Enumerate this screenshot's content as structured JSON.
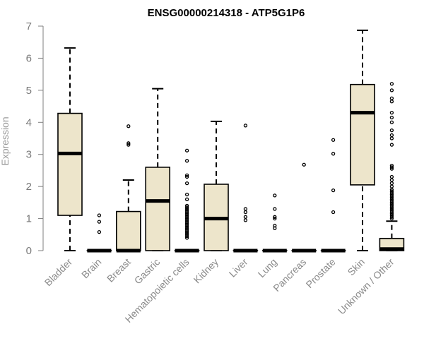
{
  "chart_data": {
    "type": "boxplot",
    "title": "ENSG00000214318 - ATP5G1P6",
    "ylabel": "Expression",
    "xlabel": "",
    "ylim": [
      0,
      7
    ],
    "yticks": [
      0,
      1,
      2,
      3,
      4,
      5,
      6,
      7
    ],
    "grid": false,
    "colors": {
      "box_fill": "#ede5cb",
      "stroke": "#000000",
      "axis": "#7f7f7f"
    },
    "categories": [
      "Bladder",
      "Brain",
      "Breast",
      "Gastric",
      "Hematopoietic cells",
      "Kidney",
      "Liver",
      "Lung",
      "Pancreas",
      "Prostate",
      "Skin",
      "Unknown / Other"
    ],
    "boxes": [
      {
        "whisker_low": 0,
        "q1": 1.1,
        "median": 3.03,
        "q3": 4.28,
        "whisker_high": 6.32,
        "outliers": []
      },
      {
        "whisker_low": 0,
        "q1": 0,
        "median": 0,
        "q3": 0,
        "whisker_high": 0,
        "outliers": [
          0.58,
          0.9,
          1.1
        ]
      },
      {
        "whisker_low": 0,
        "q1": 0,
        "median": 0,
        "q3": 1.22,
        "whisker_high": 2.2,
        "outliers": [
          3.3,
          3.35,
          3.88
        ]
      },
      {
        "whisker_low": 0,
        "q1": 0,
        "median": 1.55,
        "q3": 2.6,
        "whisker_high": 5.05,
        "outliers": []
      },
      {
        "whisker_low": 0,
        "q1": 0,
        "median": 0,
        "q3": 0,
        "whisker_high": 0,
        "outliers": [
          0.4,
          0.45,
          0.5,
          0.55,
          0.6,
          0.65,
          0.7,
          0.75,
          0.8,
          0.85,
          0.9,
          0.95,
          1.0,
          1.05,
          1.1,
          1.15,
          1.2,
          1.25,
          1.3,
          1.35,
          1.4,
          1.6,
          1.75,
          2.1,
          2.3,
          2.35,
          2.8,
          3.12
        ]
      },
      {
        "whisker_low": 0,
        "q1": 0,
        "median": 1.0,
        "q3": 2.07,
        "whisker_high": 4.03,
        "outliers": []
      },
      {
        "whisker_low": 0,
        "q1": 0,
        "median": 0,
        "q3": 0,
        "whisker_high": 0,
        "outliers": [
          0.95,
          1.05,
          1.2,
          1.3,
          3.9
        ]
      },
      {
        "whisker_low": 0,
        "q1": 0,
        "median": 0,
        "q3": 0,
        "whisker_high": 0,
        "outliers": [
          0.7,
          0.78,
          1.0,
          1.05,
          1.3,
          1.72
        ]
      },
      {
        "whisker_low": 0,
        "q1": 0,
        "median": 0,
        "q3": 0,
        "whisker_high": 0,
        "outliers": [
          2.68
        ]
      },
      {
        "whisker_low": 0,
        "q1": 0,
        "median": 0,
        "q3": 0,
        "whisker_high": 0,
        "outliers": [
          1.2,
          1.88,
          3.02,
          3.45
        ]
      },
      {
        "whisker_low": 0,
        "q1": 2.05,
        "median": 4.3,
        "q3": 5.18,
        "whisker_high": 6.87,
        "outliers": []
      },
      {
        "whisker_low": 0,
        "q1": 0,
        "median": 0.05,
        "q3": 0.38,
        "whisker_high": 0.92,
        "outliers": [
          1.0,
          1.05,
          1.1,
          1.15,
          1.2,
          1.25,
          1.3,
          1.35,
          1.4,
          1.45,
          1.5,
          1.55,
          1.6,
          1.65,
          1.7,
          1.75,
          1.8,
          1.85,
          1.9,
          2.0,
          2.1,
          2.2,
          2.3,
          2.55,
          2.6,
          2.65,
          3.3,
          3.5,
          3.6,
          3.75,
          4.0,
          4.15,
          4.3,
          4.65,
          4.75,
          5.0,
          5.2
        ]
      }
    ]
  }
}
